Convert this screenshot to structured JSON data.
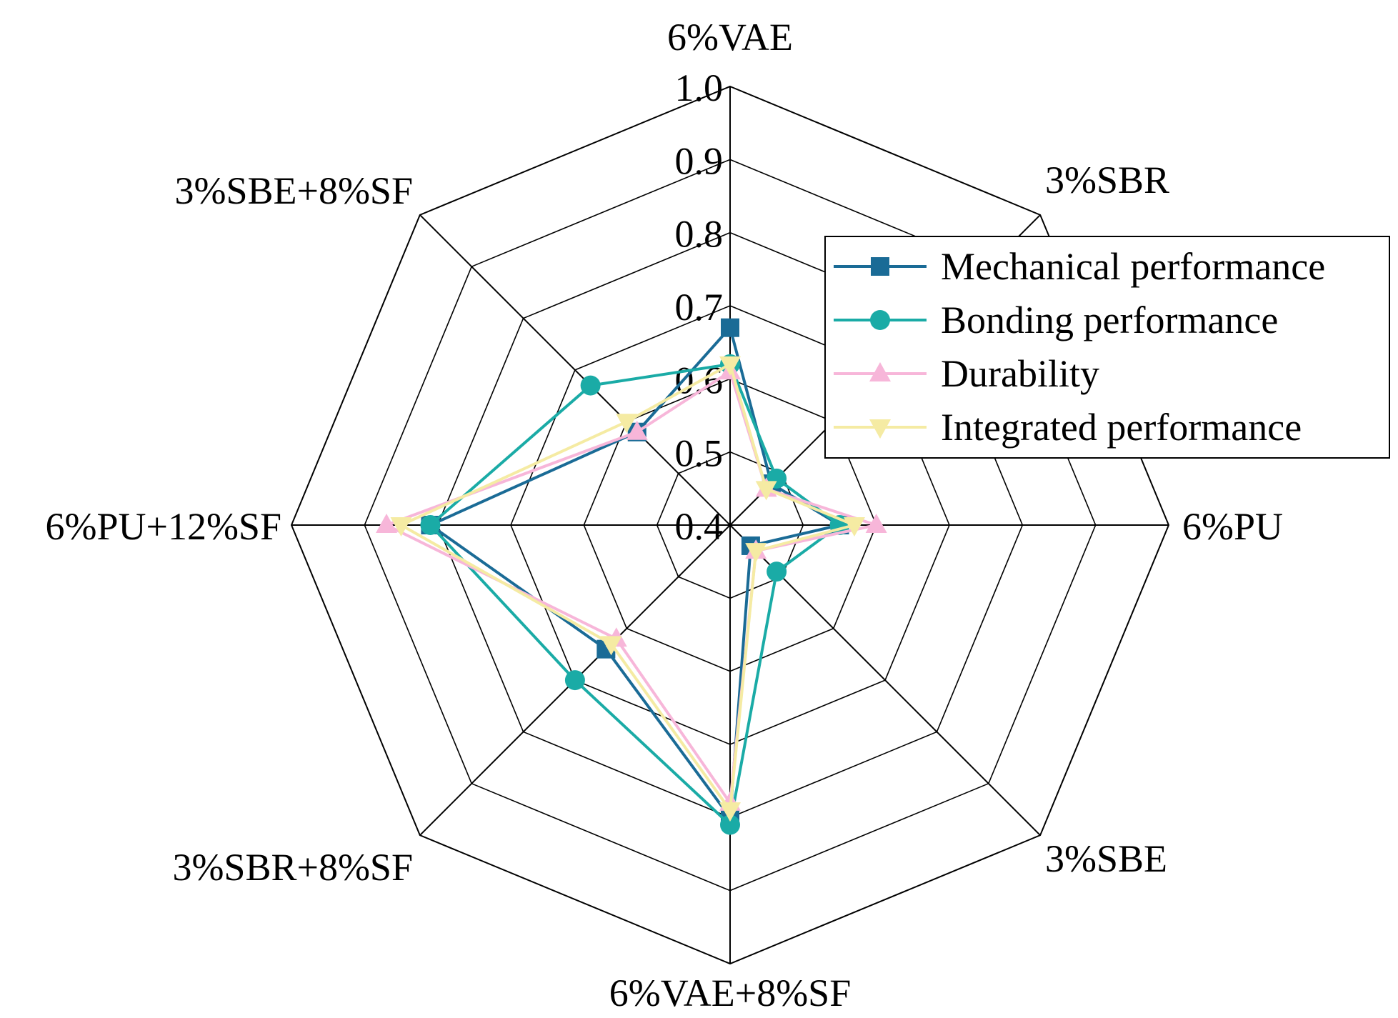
{
  "chart_data": {
    "type": "radar",
    "axes": [
      "6%VAE",
      "3%SBR",
      "6%PU",
      "3%SBE",
      "6%VAE+8%SF",
      "3%SBR+8%SF",
      "6%PU+12%SF",
      "3%SBE+8%SF"
    ],
    "r_ticks": [
      "0.4",
      "0.5",
      "0.6",
      "0.7",
      "0.8",
      "0.9",
      "1.0"
    ],
    "rlim": [
      0.4,
      1.0
    ],
    "grid": true,
    "legend_position": "top-right",
    "series": [
      {
        "name": "Mechanical performance",
        "color": "#1a6b96",
        "marker": "square",
        "values": [
          0.67,
          0.48,
          0.55,
          0.44,
          0.8,
          0.64,
          0.81,
          0.58
        ]
      },
      {
        "name": "Bonding performance",
        "color": "#1aaba6",
        "marker": "circle",
        "values": [
          0.62,
          0.49,
          0.55,
          0.49,
          0.81,
          0.7,
          0.81,
          0.67
        ]
      },
      {
        "name": "Durability",
        "color": "#f7b6d9",
        "marker": "triangle-up",
        "values": [
          0.61,
          0.47,
          0.6,
          0.45,
          0.78,
          0.62,
          0.87,
          0.58
        ]
      },
      {
        "name": "Integrated performance",
        "color": "#f5eba3",
        "marker": "triangle-down",
        "values": [
          0.62,
          0.47,
          0.57,
          0.45,
          0.79,
          0.63,
          0.85,
          0.6
        ]
      }
    ]
  }
}
